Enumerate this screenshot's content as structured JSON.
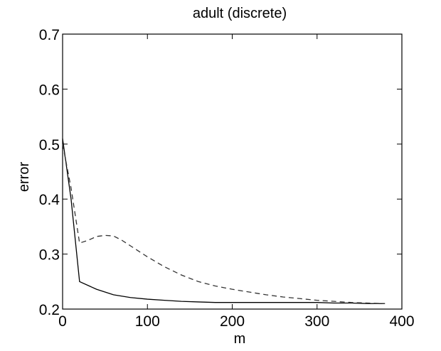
{
  "chart_data": {
    "type": "line",
    "title": "adult (discrete)",
    "xlabel": "m",
    "ylabel": "error",
    "xlim": [
      0,
      400
    ],
    "ylim": [
      0.2,
      0.7
    ],
    "xticks": [
      0,
      100,
      200,
      300,
      400
    ],
    "xtick_labels": [
      "0",
      "100",
      "200",
      "300",
      "400"
    ],
    "yticks": [
      0.2,
      0.3,
      0.4,
      0.5,
      0.6,
      0.7
    ],
    "ytick_labels": [
      "0.2",
      "0.3",
      "0.4",
      "0.5",
      "0.6",
      "0.7"
    ],
    "grid": false,
    "series": [
      {
        "style": "solid",
        "color": "#000000",
        "x": [
          0,
          10,
          20,
          40,
          60,
          80,
          100,
          120,
          140,
          160,
          180,
          200,
          220,
          240,
          260,
          280,
          300,
          320,
          340,
          360,
          380
        ],
        "y": [
          0.51,
          0.4,
          0.25,
          0.236,
          0.226,
          0.221,
          0.218,
          0.216,
          0.214,
          0.213,
          0.212,
          0.212,
          0.212,
          0.212,
          0.212,
          0.212,
          0.212,
          0.211,
          0.211,
          0.21,
          0.21
        ]
      },
      {
        "style": "dashed",
        "color": "#333333",
        "x": [
          0,
          10,
          20,
          30,
          40,
          50,
          60,
          70,
          80,
          100,
          120,
          140,
          160,
          180,
          200,
          220,
          240,
          260,
          280,
          300,
          320,
          340,
          360,
          380
        ],
        "y": [
          0.5,
          0.42,
          0.32,
          0.325,
          0.332,
          0.334,
          0.333,
          0.325,
          0.315,
          0.295,
          0.277,
          0.262,
          0.25,
          0.242,
          0.236,
          0.231,
          0.226,
          0.222,
          0.219,
          0.216,
          0.214,
          0.212,
          0.211,
          0.21
        ]
      }
    ]
  }
}
